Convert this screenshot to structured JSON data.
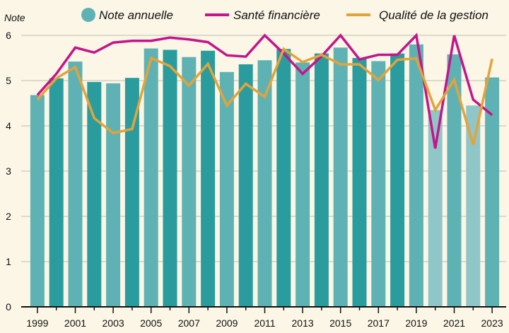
{
  "chart_data": {
    "type": "bar+line",
    "ylabel": "Note",
    "ylim": [
      0,
      6
    ],
    "yticks": [
      0,
      1,
      2,
      3,
      4,
      5,
      6
    ],
    "x": [
      1999,
      2000,
      2001,
      2002,
      2003,
      2004,
      2005,
      2006,
      2007,
      2008,
      2009,
      2010,
      2011,
      2012,
      2013,
      2014,
      2015,
      2016,
      2017,
      2018,
      2019,
      2020,
      2021,
      2022,
      2023
    ],
    "xtick_labels": [
      "1999",
      "2001",
      "2003",
      "2005",
      "2007",
      "2009",
      "2011",
      "2013",
      "2015",
      "2017",
      "2019",
      "2021",
      "2023"
    ],
    "grid": "horizontal",
    "legend_position": "top",
    "series": [
      {
        "name": "Note annuelle",
        "type": "bar",
        "color": "#5fb2b3",
        "values": [
          4.68,
          5.05,
          5.42,
          4.97,
          4.94,
          5.06,
          5.71,
          5.68,
          5.52,
          5.66,
          5.19,
          5.36,
          5.45,
          5.7,
          5.4,
          5.6,
          5.73,
          5.5,
          5.43,
          5.6,
          5.8,
          4.35,
          5.58,
          4.45,
          5.07
        ]
      },
      {
        "name": "Santé financière",
        "type": "line",
        "color": "#c4158a",
        "values": [
          4.68,
          5.15,
          5.73,
          5.62,
          5.84,
          5.88,
          5.88,
          5.95,
          5.91,
          5.85,
          5.56,
          5.53,
          6.0,
          5.6,
          5.15,
          5.54,
          6.0,
          5.47,
          5.57,
          5.57,
          6.0,
          3.5,
          6.0,
          4.58,
          4.24
        ]
      },
      {
        "name": "Qualité de la gestion",
        "type": "line",
        "color": "#e3a33a",
        "values": [
          4.58,
          5.05,
          5.3,
          4.17,
          3.84,
          3.93,
          5.5,
          5.32,
          4.89,
          5.37,
          4.45,
          4.93,
          4.64,
          5.7,
          5.41,
          5.57,
          5.36,
          5.36,
          5.01,
          5.46,
          5.49,
          4.35,
          5.02,
          3.58,
          5.48
        ]
      }
    ]
  },
  "colors": {
    "background": "#fbf6e6",
    "bar_dark": "#2a9c9e",
    "bar_light": "#5fb2b3",
    "bar_faded": "#8fc7c8",
    "grid": "#bdbdb0",
    "axis": "#111111"
  }
}
